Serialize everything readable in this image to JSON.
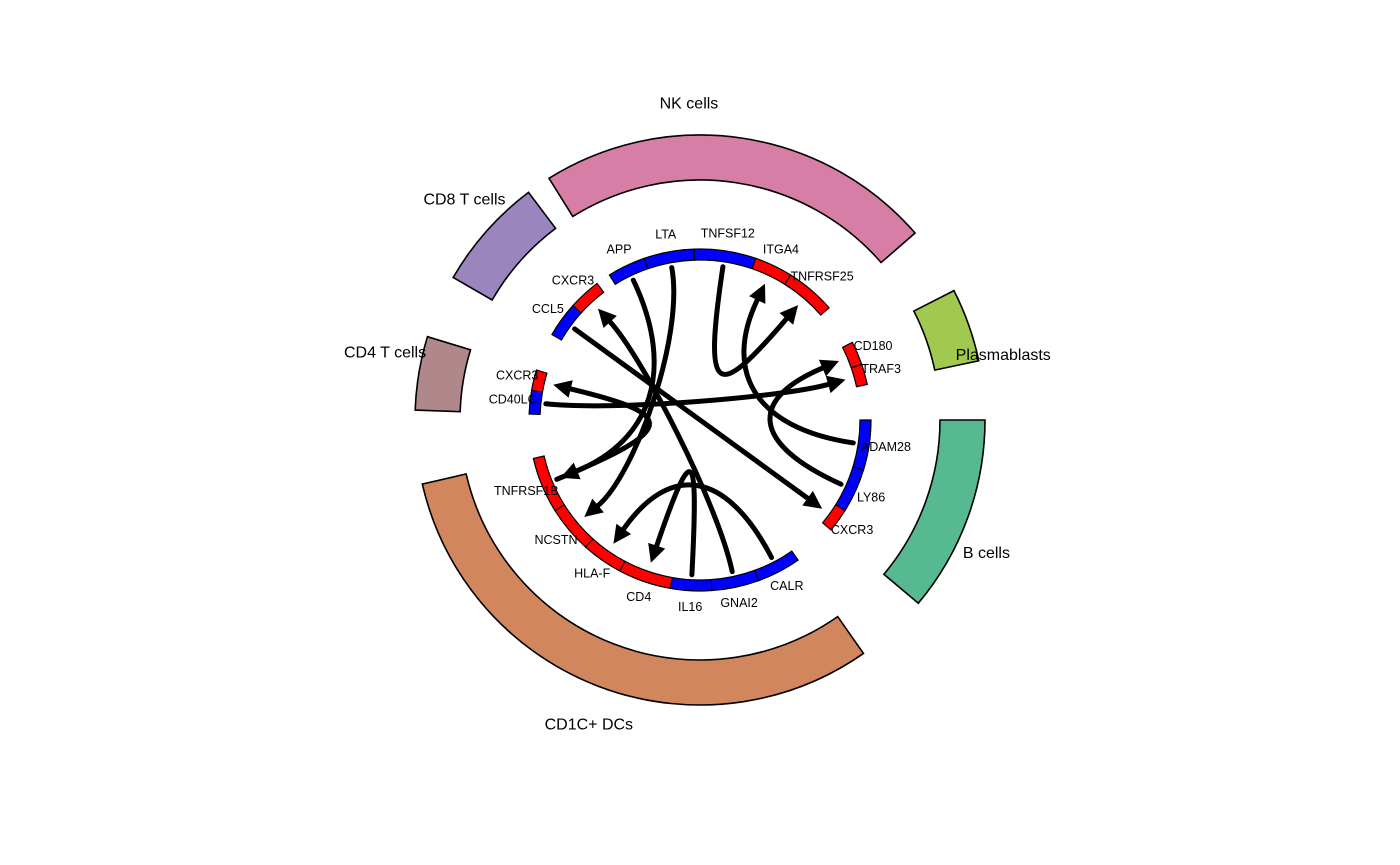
{
  "diagram": {
    "type": "chord",
    "colors": {
      "ligand": "#0000ff",
      "receptor": "#ff0000",
      "link": "#000000",
      "outline": "#000000"
    },
    "cell_types": [
      {
        "id": "nk",
        "label": "NK cells",
        "color": "#d67ea6"
      },
      {
        "id": "plasma",
        "label": "Plasmablasts",
        "color": "#a1c94f"
      },
      {
        "id": "bcell",
        "label": "B cells",
        "color": "#56b991"
      },
      {
        "id": "dc",
        "label": "CD1C+ DCs",
        "color": "#d2865e"
      },
      {
        "id": "cd4",
        "label": "CD4 T cells",
        "color": "#b0878a"
      },
      {
        "id": "cd8",
        "label": "CD8 T cells",
        "color": "#9b85bf"
      }
    ],
    "genes": [
      {
        "id": "app",
        "label": "APP",
        "role": "ligand",
        "cell": "nk"
      },
      {
        "id": "lta",
        "label": "LTA",
        "role": "ligand",
        "cell": "nk"
      },
      {
        "id": "tnfsf12",
        "label": "TNFSF12",
        "role": "ligand",
        "cell": "nk"
      },
      {
        "id": "itga4",
        "label": "ITGA4",
        "role": "receptor",
        "cell": "nk"
      },
      {
        "id": "tnfrsf25",
        "label": "TNFRSF25",
        "role": "receptor",
        "cell": "nk"
      },
      {
        "id": "cd180",
        "label": "CD180",
        "role": "receptor",
        "cell": "plasma"
      },
      {
        "id": "traf3",
        "label": "TRAF3",
        "role": "receptor",
        "cell": "plasma"
      },
      {
        "id": "adam28",
        "label": "ADAM28",
        "role": "ligand",
        "cell": "bcell"
      },
      {
        "id": "ly86",
        "label": "LY86",
        "role": "ligand",
        "cell": "bcell"
      },
      {
        "id": "cxcr3_b",
        "label": "CXCR3",
        "role": "receptor",
        "cell": "bcell"
      },
      {
        "id": "calr",
        "label": "CALR",
        "role": "ligand",
        "cell": "dc"
      },
      {
        "id": "gnai2",
        "label": "GNAI2",
        "role": "ligand",
        "cell": "dc"
      },
      {
        "id": "il16",
        "label": "IL16",
        "role": "ligand",
        "cell": "dc"
      },
      {
        "id": "cd4",
        "label": "CD4",
        "role": "receptor",
        "cell": "dc"
      },
      {
        "id": "hlaf",
        "label": "HLA-F",
        "role": "receptor",
        "cell": "dc"
      },
      {
        "id": "ncstn",
        "label": "NCSTN",
        "role": "receptor",
        "cell": "dc"
      },
      {
        "id": "tnfrsf1b",
        "label": "TNFRSF1B",
        "role": "receptor",
        "cell": "dc"
      },
      {
        "id": "cd40lg",
        "label": "CD40LG",
        "role": "ligand",
        "cell": "cd4"
      },
      {
        "id": "cxcr3_cd4",
        "label": "CXCR3",
        "role": "receptor",
        "cell": "cd4"
      },
      {
        "id": "ccl5",
        "label": "CCL5",
        "role": "ligand",
        "cell": "cd8"
      },
      {
        "id": "cxcr3_cd8",
        "label": "CXCR3",
        "role": "receptor",
        "cell": "cd8"
      }
    ],
    "links": [
      {
        "from": "app",
        "to": "tnfrsf1b"
      },
      {
        "from": "lta",
        "to": "ncstn"
      },
      {
        "from": "tnfsf12",
        "to": "tnfrsf25"
      },
      {
        "from": "adam28",
        "to": "itga4"
      },
      {
        "from": "ly86",
        "to": "cd180"
      },
      {
        "from": "cd40lg",
        "to": "traf3"
      },
      {
        "from": "ccl5",
        "to": "cxcr3_b"
      },
      {
        "from": "gnai2",
        "to": "cxcr3_cd8"
      },
      {
        "from": "calr",
        "to": "hlaf"
      },
      {
        "from": "il16",
        "to": "cd4"
      },
      {
        "from": "tnfrsf1b",
        "to": "cxcr3_cd4"
      }
    ]
  }
}
